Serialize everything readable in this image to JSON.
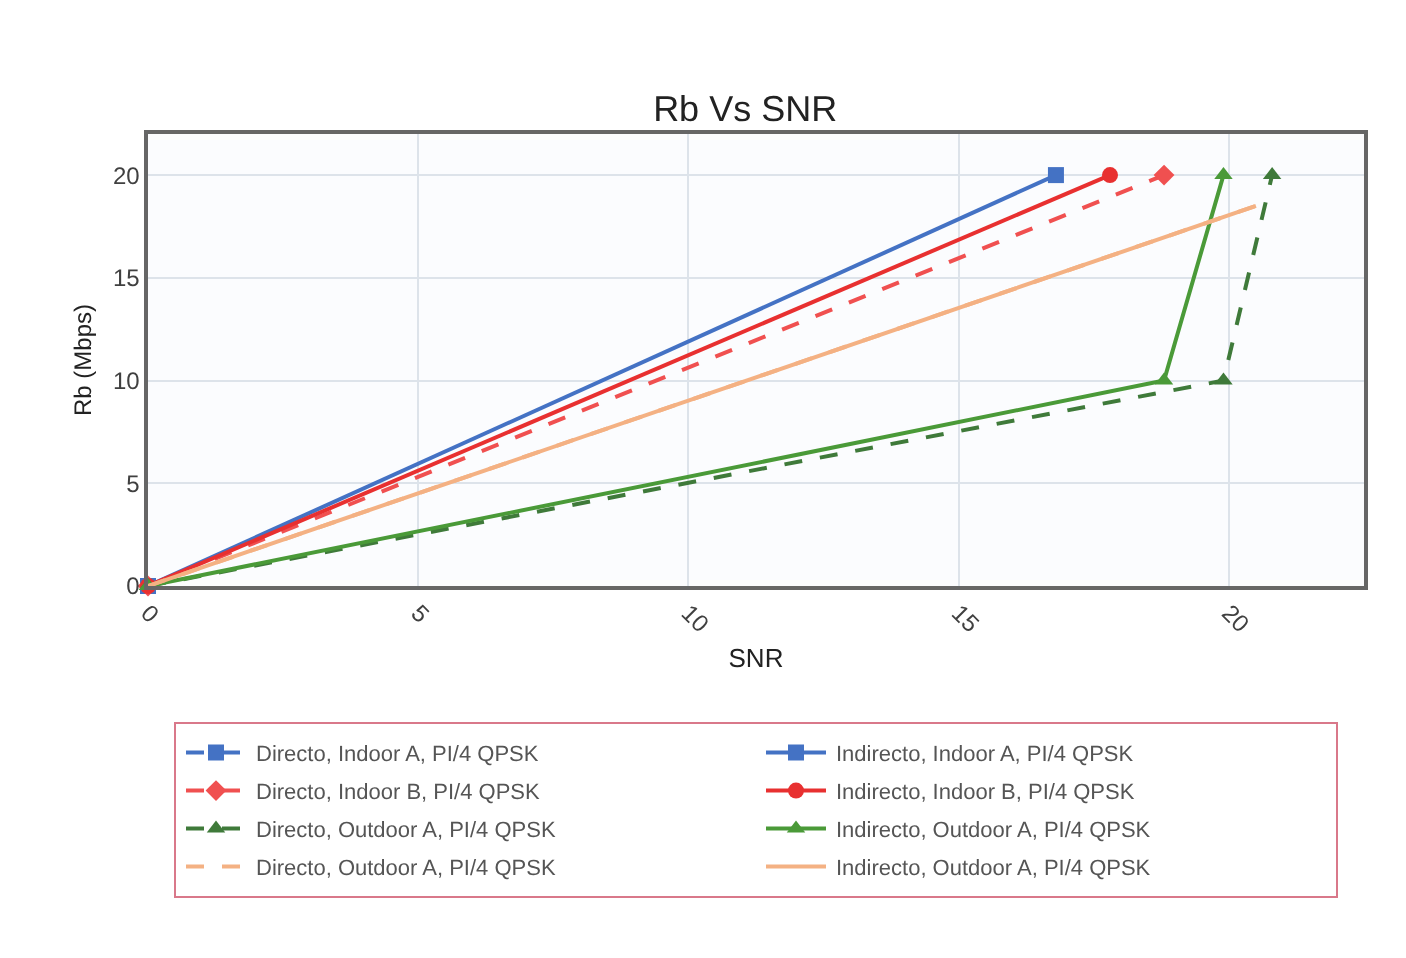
{
  "chart_data": {
    "type": "line",
    "title": "Rb Vs SNR",
    "xlabel": "SNR",
    "ylabel": "Rb (Mbps)",
    "xlim": [
      0,
      22.5
    ],
    "xticks": [
      0,
      5,
      10,
      15,
      20
    ],
    "ylim": [
      0,
      22
    ],
    "yticks": [
      0,
      5,
      10,
      15,
      20
    ],
    "grid": true,
    "legend": "bottom",
    "series": [
      {
        "name": "Directo, Indoor A, PI/4 QPSK",
        "color": "#4472c4",
        "line_style": "dashed",
        "marker": "square",
        "values": [
          null,
          null
        ]
      },
      {
        "name": "Indirecto, Indoor A, PI/4 QPSK",
        "color": "#4472c4",
        "line_style": "solid",
        "marker": "square",
        "x": [
          0,
          16.8
        ],
        "values": [
          0,
          20
        ]
      },
      {
        "name": "Directo, Indoor B, PI/4 QPSK",
        "color": "#f05050",
        "line_style": "dashed",
        "marker": "diamond",
        "x": [
          0,
          18.8
        ],
        "values": [
          0,
          20
        ]
      },
      {
        "name": "Indirecto, Indoor B, PI/4 QPSK",
        "color": "#e83030",
        "line_style": "solid",
        "marker": "circle",
        "x": [
          0,
          17.8
        ],
        "values": [
          0,
          20
        ]
      },
      {
        "name": "Directo, Outdoor A, PI/4 QPSK",
        "color": "#3f7a3a",
        "line_style": "dashed",
        "marker": "triangle",
        "x": [
          0,
          19.9,
          20.8
        ],
        "values": [
          0,
          10,
          20
        ]
      },
      {
        "name": "Indirecto, Outdoor A, PI/4 QPSK",
        "color": "#4a9a38",
        "line_style": "solid",
        "marker": "triangle",
        "x": [
          0,
          18.8,
          19.9
        ],
        "values": [
          0,
          10,
          20
        ]
      },
      {
        "name": "Directo, Outdoor A, PI/4 QPSK",
        "color": "#f4b183",
        "line_style": "dashed",
        "marker": "none",
        "x": [
          0,
          20.5
        ],
        "values": [
          0,
          18.5
        ]
      },
      {
        "name": "Indirecto, Outdoor A, PI/4 QPSK",
        "color": "#f4b183",
        "line_style": "solid",
        "marker": "none",
        "x": [
          0,
          20.5
        ],
        "values": [
          0,
          18.5
        ]
      }
    ]
  }
}
